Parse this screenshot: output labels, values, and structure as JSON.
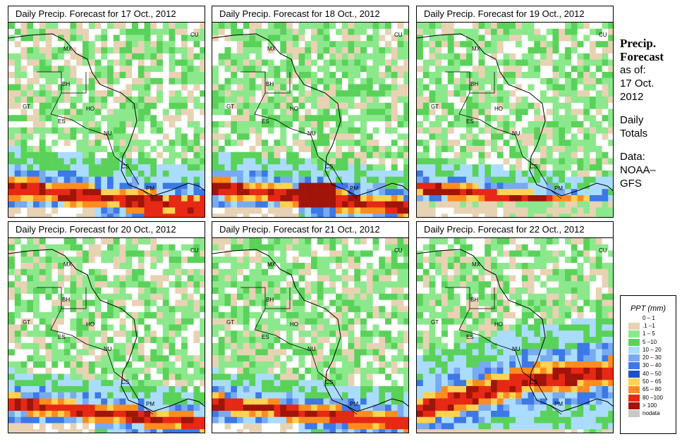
{
  "panels": [
    {
      "title": "Daily Precip. Forecast for  17 Oct., 2012",
      "seed": 17,
      "pattern": "p17"
    },
    {
      "title": "Daily Precip. Forecast for  18 Oct., 2012",
      "seed": 18,
      "pattern": "p18"
    },
    {
      "title": "Daily Precip. Forecast for  19 Oct., 2012",
      "seed": 19,
      "pattern": "p19"
    },
    {
      "title": "Daily Precip. Forecast for  20 Oct., 2012",
      "seed": 20,
      "pattern": "p20"
    },
    {
      "title": "Daily Precip. Forecast for  21 Oct., 2012",
      "seed": 21,
      "pattern": "p21"
    },
    {
      "title": "Daily Precip. Forecast for  22 Oct., 2012",
      "seed": 22,
      "pattern": "p22"
    }
  ],
  "country_labels": [
    "MX",
    "CU",
    "BH",
    "GT",
    "HO",
    "ES",
    "NU",
    "CS",
    "PM"
  ],
  "side": {
    "heading_line1": "Precip.",
    "heading_line2": "Forecast",
    "as_of": "as of:",
    "date_line1": "17 Oct.",
    "date_line2": "2012",
    "daily_line1": "Daily",
    "daily_line2": "Totals",
    "data_line1": "Data:",
    "data_line2": "NOAA–",
    "data_line3": "GFS"
  },
  "legend": {
    "title": "PPT (mm)",
    "items": [
      {
        "label": "0 – 1",
        "color": "#ffffff"
      },
      {
        "label": ".1 –1",
        "color": "#e8d2b4"
      },
      {
        "label": "1 – 5",
        "color": "#8ce88c"
      },
      {
        "label": "5 –10",
        "color": "#5ad25a"
      },
      {
        "label": "10 – 20",
        "color": "#aadcff"
      },
      {
        "label": "20 – 30",
        "color": "#78aaf0"
      },
      {
        "label": "30 – 40",
        "color": "#3c78e6"
      },
      {
        "label": "40 – 50",
        "color": "#1e50c8"
      },
      {
        "label": "50 – 65",
        "color": "#ffd250"
      },
      {
        "label": "65 – 80",
        "color": "#ff8c1e"
      },
      {
        "label": "80 –100",
        "color": "#e62814"
      },
      {
        "label": "> 100",
        "color": "#a0140a"
      },
      {
        "label": "nodata",
        "color": "#c8c8c8"
      }
    ]
  }
}
